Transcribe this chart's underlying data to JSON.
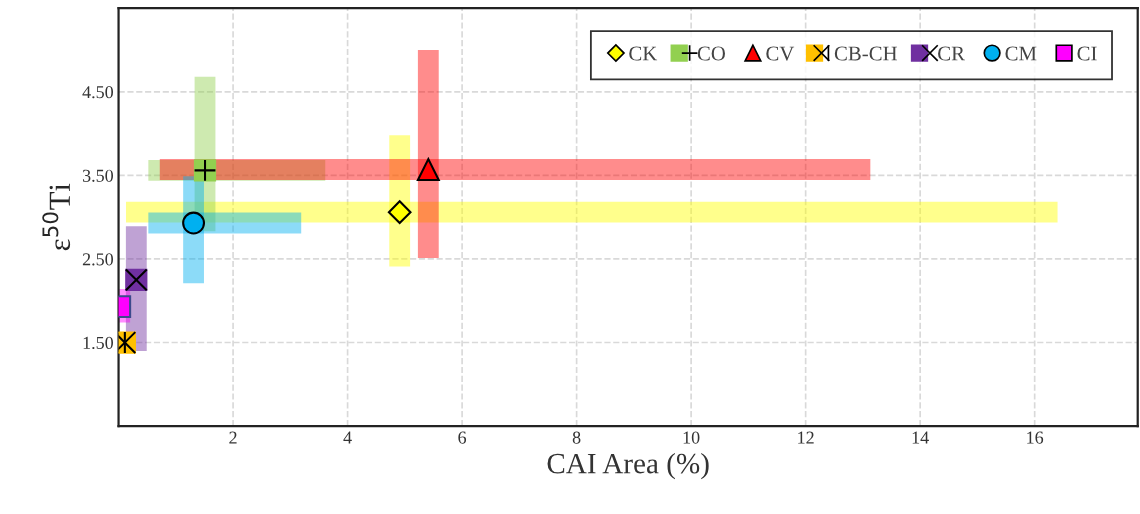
{
  "chart_data": {
    "type": "scatter",
    "xlabel": "CAI Area (%)",
    "ylabel": "ε$^{50}$Ti",
    "xlim": [
      0,
      17.8
    ],
    "xticks": [
      2,
      4,
      6,
      8,
      10,
      12,
      14,
      16
    ],
    "ylim": [
      0.5,
      5.5
    ],
    "yticks": [
      {
        "value": 1.5,
        "label": "1.50"
      },
      {
        "value": 2.5,
        "label": "2.50"
      },
      {
        "value": 3.5,
        "label": "3.50"
      },
      {
        "value": 4.5,
        "label": "4.50"
      }
    ],
    "grid": true,
    "legend": "top right",
    "line_style": "dashed",
    "series": [
      {
        "name": "CK",
        "color": "#ffff00",
        "marker": "diamond",
        "x": [
          4.91
        ],
        "values": [
          3.06
        ],
        "xerrors": [
          [
            0.13,
            16.4
          ]
        ],
        "errors": [
          [
            2.41,
            3.98
          ]
        ]
      },
      {
        "name": "CO",
        "color": "#92d050",
        "marker": "square",
        "x": [
          1.51
        ],
        "values": [
          3.56
        ],
        "xerrors": [
          [
            0.52,
            3.61
          ]
        ],
        "errors": [
          [
            2.83,
            4.68
          ]
        ]
      },
      {
        "name": "CV",
        "color": "#ff0000",
        "marker": "triangle",
        "x": [
          5.41
        ],
        "values": [
          3.57
        ],
        "xerrors": [
          [
            0.72,
            13.13
          ]
        ],
        "errors": [
          [
            2.51,
            5.0
          ]
        ]
      },
      {
        "name": "CB-CH",
        "color": "#ffc000",
        "marker": "square",
        "x": [
          0.11
        ],
        "values": [
          1.5
        ]
      },
      {
        "name": "CR",
        "color": "#7030a0",
        "marker": "square",
        "x": [
          0.31
        ],
        "values": [
          2.25
        ],
        "errors": [
          [
            1.4,
            2.89
          ]
        ]
      },
      {
        "name": "CM",
        "color": "#00b0f0",
        "marker": "circle",
        "x": [
          1.31
        ],
        "values": [
          2.93
        ],
        "xerrors": [
          [
            0.52,
            3.19
          ]
        ],
        "errors": [
          [
            2.21,
            3.49
          ]
        ]
      },
      {
        "name": "CI",
        "color": "#ff00ff",
        "marker": "square",
        "x": [
          0.02
        ],
        "values": [
          1.93
        ],
        "errors": [
          [
            1.74,
            2.14
          ]
        ]
      }
    ]
  }
}
